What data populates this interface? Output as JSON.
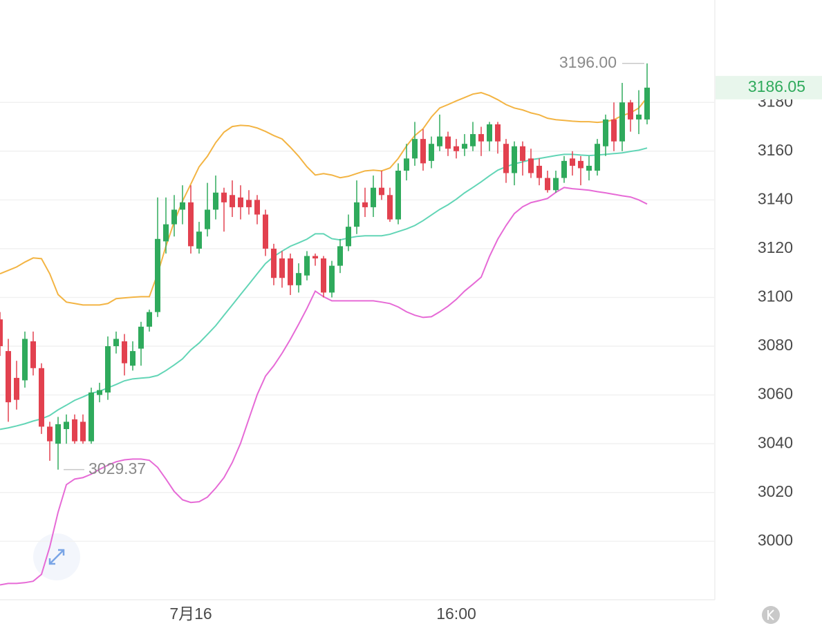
{
  "chart_data": {
    "type": "candlestick",
    "categories": [
      null,
      null,
      null,
      null,
      null,
      null,
      null,
      null,
      null,
      null,
      null,
      null,
      null,
      null,
      null,
      null,
      null,
      null,
      null,
      null,
      null,
      null,
      null,
      "7月16",
      null,
      null,
      null,
      null,
      null,
      null,
      null,
      null,
      null,
      null,
      null,
      null,
      null,
      null,
      null,
      null,
      null,
      null,
      null,
      null,
      null,
      null,
      null,
      null,
      null,
      null,
      null,
      null,
      null,
      null,
      null,
      "16:00",
      null,
      null,
      null,
      null,
      null,
      null,
      null,
      null,
      null,
      null,
      null,
      null,
      null,
      null,
      null,
      null,
      null,
      null,
      null,
      null,
      null,
      null,
      null
    ],
    "open": [
      3091,
      3078,
      3067,
      3066,
      3082,
      3071,
      3047,
      3040,
      3046,
      3050,
      3049,
      3041,
      3060,
      3061,
      3080,
      3082,
      3072,
      3079,
      3088,
      3094,
      3123,
      3130,
      3136,
      3139,
      3120,
      3128,
      3136,
      3143,
      3142,
      3141,
      3140,
      3140,
      3134,
      3120,
      3116,
      3116,
      3105,
      3109,
      3117,
      3116,
      3102,
      3113,
      3121,
      3129,
      3139,
      3137,
      3145,
      3142,
      3132,
      3152,
      3157,
      3165,
      3156,
      3162,
      3166,
      3162,
      3161,
      3162,
      3167,
      3164,
      3171,
      3163,
      3151,
      3162,
      3157,
      3154,
      3149,
      3144,
      3149,
      3157,
      3156,
      3152,
      3152,
      3162,
      3173,
      3164,
      3180,
      3173,
      3173
    ],
    "high": [
      3094,
      3083,
      3074,
      3086,
      3086,
      3073,
      3049,
      3051,
      3052,
      3052,
      3052,
      3063,
      3065,
      3084,
      3086,
      3085,
      3082,
      3090,
      3095,
      3141,
      3141,
      3142,
      3146,
      3146,
      3131,
      3147,
      3150,
      3145,
      3148,
      3146,
      3144,
      3142,
      3136,
      3122,
      3119,
      3118,
      3114,
      3119,
      3118,
      3117,
      3115,
      3124,
      3134,
      3148,
      3145,
      3150,
      3152,
      3145,
      3155,
      3163,
      3172,
      3169,
      3166,
      3175,
      3168,
      3165,
      3167,
      3172,
      3170,
      3172,
      3172,
      3165,
      3164,
      3164,
      3161,
      3157,
      3152,
      3152,
      3158,
      3160,
      3158,
      3158,
      3165,
      3175,
      3180,
      3188,
      3181,
      3185,
      3196
    ],
    "low": [
      3076,
      3049,
      3054,
      3063,
      3068,
      3044,
      3033,
      3029.37,
      3040,
      3040,
      3040,
      3040,
      3057,
      3058,
      3077,
      3068,
      3070,
      3072,
      3086,
      3092,
      3118,
      3125,
      3130,
      3118,
      3118,
      3125,
      3132,
      3127,
      3133,
      3132,
      3134,
      3130,
      3117,
      3105,
      3104,
      3101,
      3102,
      3107,
      3113,
      3100,
      3100,
      3110,
      3119,
      3126,
      3133,
      3133,
      3140,
      3131,
      3130,
      3148,
      3154,
      3152,
      3153,
      3160,
      3158,
      3157,
      3158,
      3160,
      3158,
      3160,
      3159,
      3147,
      3146,
      3150,
      3149,
      3146,
      3143,
      3143,
      3147,
      3150,
      3146,
      3148,
      3150,
      3158,
      3160,
      3160,
      3168,
      3167,
      3171
    ],
    "close": [
      3080,
      3057,
      3058,
      3083,
      3071,
      3047,
      3041,
      3048,
      3049,
      3041,
      3041,
      3061,
      3062,
      3080,
      3083,
      3073,
      3078,
      3088,
      3094,
      3124,
      3130,
      3136,
      3139,
      3121,
      3127,
      3136,
      3143,
      3139,
      3137,
      3137,
      3137,
      3134,
      3120,
      3108,
      3108,
      3105,
      3110,
      3117,
      3116,
      3102,
      3113,
      3121,
      3129,
      3139,
      3137,
      3145,
      3142,
      3132,
      3152,
      3157,
      3165,
      3155,
      3163,
      3166,
      3161,
      3160,
      3163,
      3167,
      3164,
      3171,
      3164,
      3151,
      3162,
      3156,
      3151,
      3149,
      3144,
      3149,
      3156,
      3154,
      3153,
      3154,
      3163,
      3173,
      3164,
      3180,
      3173,
      3175,
      3186.05
    ],
    "up_color": "#2faa5c",
    "down_color": "#e2414f",
    "bands": [
      {
        "color": "#f3b443",
        "values": [
          3109.7,
          3111.1,
          3112.5,
          3114.5,
          3116.2,
          3115.9,
          3109.7,
          3101.2,
          3098.1,
          3097.5,
          3096.9,
          3096.9,
          3096.9,
          3097.5,
          3099.5,
          3099.8,
          3100.1,
          3100.3,
          3100.3,
          3109.7,
          3121.0,
          3131.0,
          3139.5,
          3146.5,
          3153.6,
          3157.9,
          3163.5,
          3167.8,
          3170.1,
          3170.6,
          3170.4,
          3169.5,
          3168.1,
          3166.4,
          3165.0,
          3161.6,
          3157.9,
          3153.6,
          3150.2,
          3150.8,
          3150.2,
          3149.1,
          3149.7,
          3150.8,
          3151.9,
          3152.2,
          3151.9,
          3153.1,
          3157.0,
          3162.1,
          3166.4,
          3169.2,
          3174.0,
          3177.7,
          3179.1,
          3180.6,
          3182.0,
          3183.4,
          3184.0,
          3182.8,
          3181.1,
          3179.1,
          3177.7,
          3176.9,
          3175.7,
          3174.9,
          3173.5,
          3172.9,
          3172.6,
          3172.3,
          3172.1,
          3172.1,
          3171.8,
          3172.1,
          3172.9,
          3174.6,
          3175.7,
          3177.7,
          3182.0
        ]
      },
      {
        "color": "#62d5b6",
        "values": [
          3045.9,
          3046.5,
          3047.3,
          3048.2,
          3049.3,
          3050.2,
          3051.6,
          3053.9,
          3055.8,
          3057.8,
          3059.2,
          3060.7,
          3061.5,
          3062.9,
          3064.3,
          3065.8,
          3066.6,
          3066.9,
          3067.2,
          3068.0,
          3070.0,
          3072.3,
          3074.8,
          3078.5,
          3081.3,
          3084.8,
          3088.4,
          3092.7,
          3096.9,
          3101.2,
          3105.4,
          3109.7,
          3113.9,
          3116.8,
          3119.0,
          3121.0,
          3122.4,
          3123.9,
          3126.1,
          3126.1,
          3124.1,
          3123.6,
          3124.4,
          3125.0,
          3125.3,
          3125.3,
          3125.3,
          3125.9,
          3127.0,
          3128.1,
          3129.5,
          3131.5,
          3133.8,
          3136.1,
          3138.0,
          3140.3,
          3142.9,
          3145.1,
          3147.4,
          3149.9,
          3152.2,
          3153.6,
          3154.8,
          3155.6,
          3156.5,
          3157.0,
          3157.6,
          3158.2,
          3158.7,
          3158.7,
          3158.4,
          3158.2,
          3158.4,
          3158.7,
          3159.0,
          3159.3,
          3159.9,
          3160.4,
          3161.3
        ]
      },
      {
        "color": "#e66ad6",
        "values": [
          2982.1,
          2982.7,
          2982.7,
          2983.0,
          2983.6,
          2986.4,
          2997.7,
          3011.9,
          3023.2,
          3025.5,
          3026.1,
          3027.5,
          3029.5,
          3031.2,
          3032.6,
          3033.4,
          3033.7,
          3033.7,
          3033.2,
          3030.3,
          3025.5,
          3020.4,
          3017.0,
          3015.9,
          3016.2,
          3018.1,
          3021.8,
          3026.1,
          3032.3,
          3040.2,
          3050.2,
          3060.1,
          3067.7,
          3072.0,
          3077.1,
          3082.8,
          3089.0,
          3095.5,
          3102.6,
          3100.3,
          3098.6,
          3098.6,
          3098.6,
          3098.6,
          3098.6,
          3098.6,
          3098.1,
          3097.5,
          3096.1,
          3094.1,
          3092.7,
          3091.8,
          3092.1,
          3094.1,
          3096.4,
          3099.2,
          3102.6,
          3105.4,
          3108.3,
          3116.8,
          3123.9,
          3129.5,
          3134.4,
          3137.2,
          3138.9,
          3139.7,
          3140.6,
          3143.1,
          3145.1,
          3144.6,
          3144.3,
          3144.0,
          3143.4,
          3142.9,
          3142.3,
          3141.7,
          3141.2,
          3140.0,
          3138.3
        ]
      }
    ],
    "ylim": [
      2976,
      3222
    ],
    "yticks": [
      3000,
      3020,
      3040,
      3060,
      3080,
      3100,
      3120,
      3140,
      3160,
      3180
    ],
    "grid": true,
    "high_label": {
      "value": 3196,
      "label": "3196.00"
    },
    "low_label": 3029.37,
    "last_price": 3186.05
  }
}
